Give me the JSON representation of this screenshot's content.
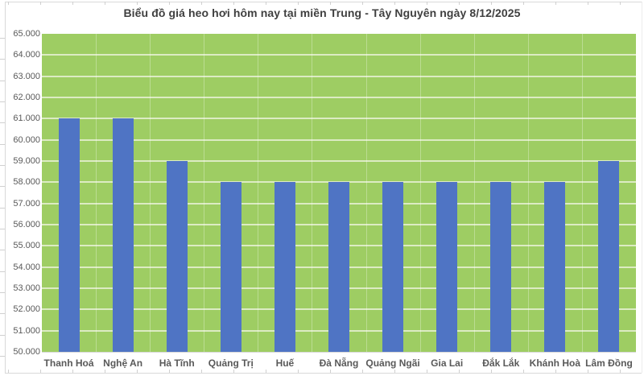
{
  "page": {
    "title": "Biểu đồ giá heo hơi hôm nay tại miền Trung - Tây Nguyên ngày 8/12/2025"
  },
  "chart_data": {
    "type": "bar",
    "title": "Biểu đồ giá heo hơi hôm nay tại miền Trung - Tây Nguyên ngày 8/12/2025",
    "categories": [
      "Thanh Hoá",
      "Nghệ An",
      "Hà Tĩnh",
      "Quảng Trị",
      "Huế",
      "Đà Nẵng",
      "Quảng Ngãi",
      "Gia Lai",
      "Đắk Lắk",
      "Khánh Hoà",
      "Lâm Đồng"
    ],
    "values": [
      61000,
      61000,
      59000,
      58000,
      58000,
      58000,
      58000,
      58000,
      58000,
      58000,
      59000
    ],
    "xlabel": "",
    "ylabel": "",
    "ylim": [
      50000,
      65000
    ],
    "ytick_step": 1000,
    "ytick_label_format": "thousands-dot-separator",
    "grid": "horizontal",
    "legend_position": "none",
    "colors": {
      "bar": "#4f74c4",
      "plot_background": "#9ecd63",
      "gridline_horizontal": "#dcebc3",
      "gridline_vertical": "rgba(255,255,255,0.30)",
      "title_text": "#3f3f3f",
      "axis_text": "#595959",
      "frame": "#d9d9d9"
    }
  }
}
